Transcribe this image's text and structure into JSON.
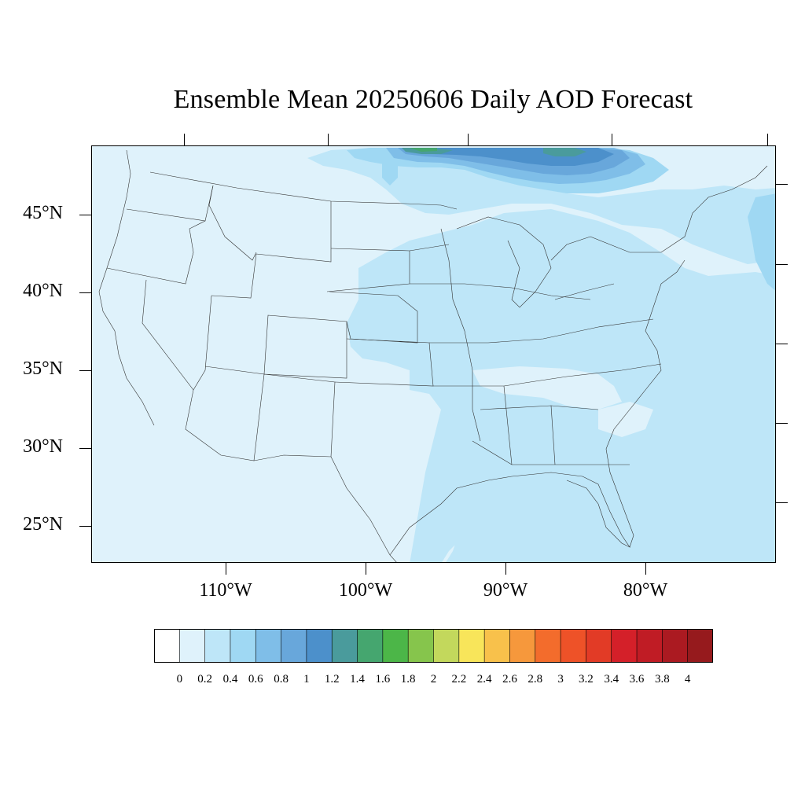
{
  "title": "Ensemble Mean 20250606 Daily AOD Forecast",
  "map": {
    "lat_labels": [
      "45°N",
      "40°N",
      "35°N",
      "30°N",
      "25°N"
    ],
    "lon_labels": [
      "110°W",
      "100°W",
      "90°W",
      "80°W"
    ],
    "field_colors": {
      "land_base": "#dff2fb",
      "level_0_4": "#bee6f8",
      "level_0_6": "#9fd8f3",
      "level_0_8": "#7fbee8",
      "level_1_0": "#68a7db",
      "level_1_2": "#4c90cb",
      "level_1_4": "#4a9b9c",
      "level_1_6": "#45a66f"
    }
  },
  "colorbar": {
    "colors": [
      "#ffffff",
      "#dff2fb",
      "#bee6f8",
      "#9fd8f3",
      "#7fbee8",
      "#68a7db",
      "#4c90cb",
      "#4a9b9c",
      "#45a66f",
      "#4cb648",
      "#86c54c",
      "#c3d85c",
      "#f8e55a",
      "#f8c14b",
      "#f6983c",
      "#f36c2c",
      "#ee5228",
      "#e23b26",
      "#d42029",
      "#c01c25",
      "#ab1a21",
      "#961a1d"
    ],
    "labels": [
      "0",
      "0.2",
      "0.4",
      "0.6",
      "0.8",
      "1",
      "1.2",
      "1.4",
      "1.6",
      "1.8",
      "2",
      "2.2",
      "2.4",
      "2.6",
      "2.8",
      "3",
      "3.2",
      "3.4",
      "3.6",
      "3.8",
      "4"
    ]
  }
}
